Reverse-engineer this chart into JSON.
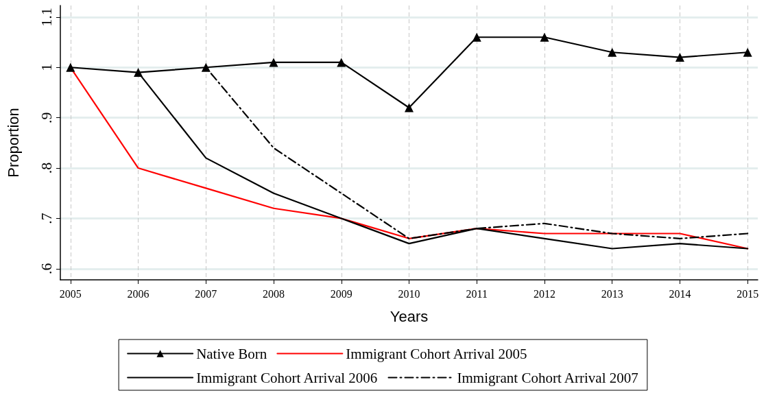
{
  "chart_data": {
    "type": "line",
    "xlabel": "Years",
    "ylabel": "Proportion",
    "x": [
      2005,
      2006,
      2007,
      2008,
      2009,
      2010,
      2011,
      2012,
      2013,
      2014,
      2015
    ],
    "xlim": [
      2004.85,
      2015.15
    ],
    "xticks": [
      2005,
      2006,
      2007,
      2008,
      2009,
      2010,
      2011,
      2012,
      2013,
      2014,
      2015
    ],
    "ylim": [
      0.578,
      1.123
    ],
    "yticks": [
      {
        "value": 0.6,
        "label": ".6"
      },
      {
        "value": 0.7,
        "label": ".7"
      },
      {
        "value": 0.8,
        "label": ".8"
      },
      {
        "value": 0.9,
        "label": ".9"
      },
      {
        "value": 1,
        "label": "1"
      },
      {
        "value": 1.1,
        "label": "1.1"
      }
    ],
    "grid": true,
    "legend": "bottom",
    "series": [
      {
        "name": "Native Born",
        "color": "#000000",
        "marker": "triangle",
        "line_style": "solid",
        "values": [
          1.0,
          0.99,
          1.0,
          1.01,
          1.01,
          0.92,
          1.06,
          1.06,
          1.03,
          1.02,
          1.03
        ]
      },
      {
        "name": "Immigrant Cohort Arrival 2005",
        "color": "#ff0000",
        "marker": "none",
        "line_style": "solid",
        "values": [
          1.0,
          0.8,
          0.76,
          0.72,
          0.7,
          0.66,
          0.68,
          0.67,
          0.67,
          0.67,
          0.64
        ]
      },
      {
        "name": "Immigrant Cohort Arrival 2006",
        "color": "#000000",
        "marker": "none",
        "line_style": "solid",
        "values": [
          null,
          0.99,
          0.82,
          0.75,
          0.7,
          0.65,
          0.68,
          0.66,
          0.64,
          0.65,
          0.64
        ]
      },
      {
        "name": "Immigrant Cohort Arrival 2007",
        "color": "#000000",
        "marker": "none",
        "line_style": "dashed",
        "values": [
          null,
          null,
          1.0,
          0.84,
          0.75,
          0.66,
          0.68,
          0.69,
          0.67,
          0.66,
          0.67
        ]
      }
    ]
  }
}
